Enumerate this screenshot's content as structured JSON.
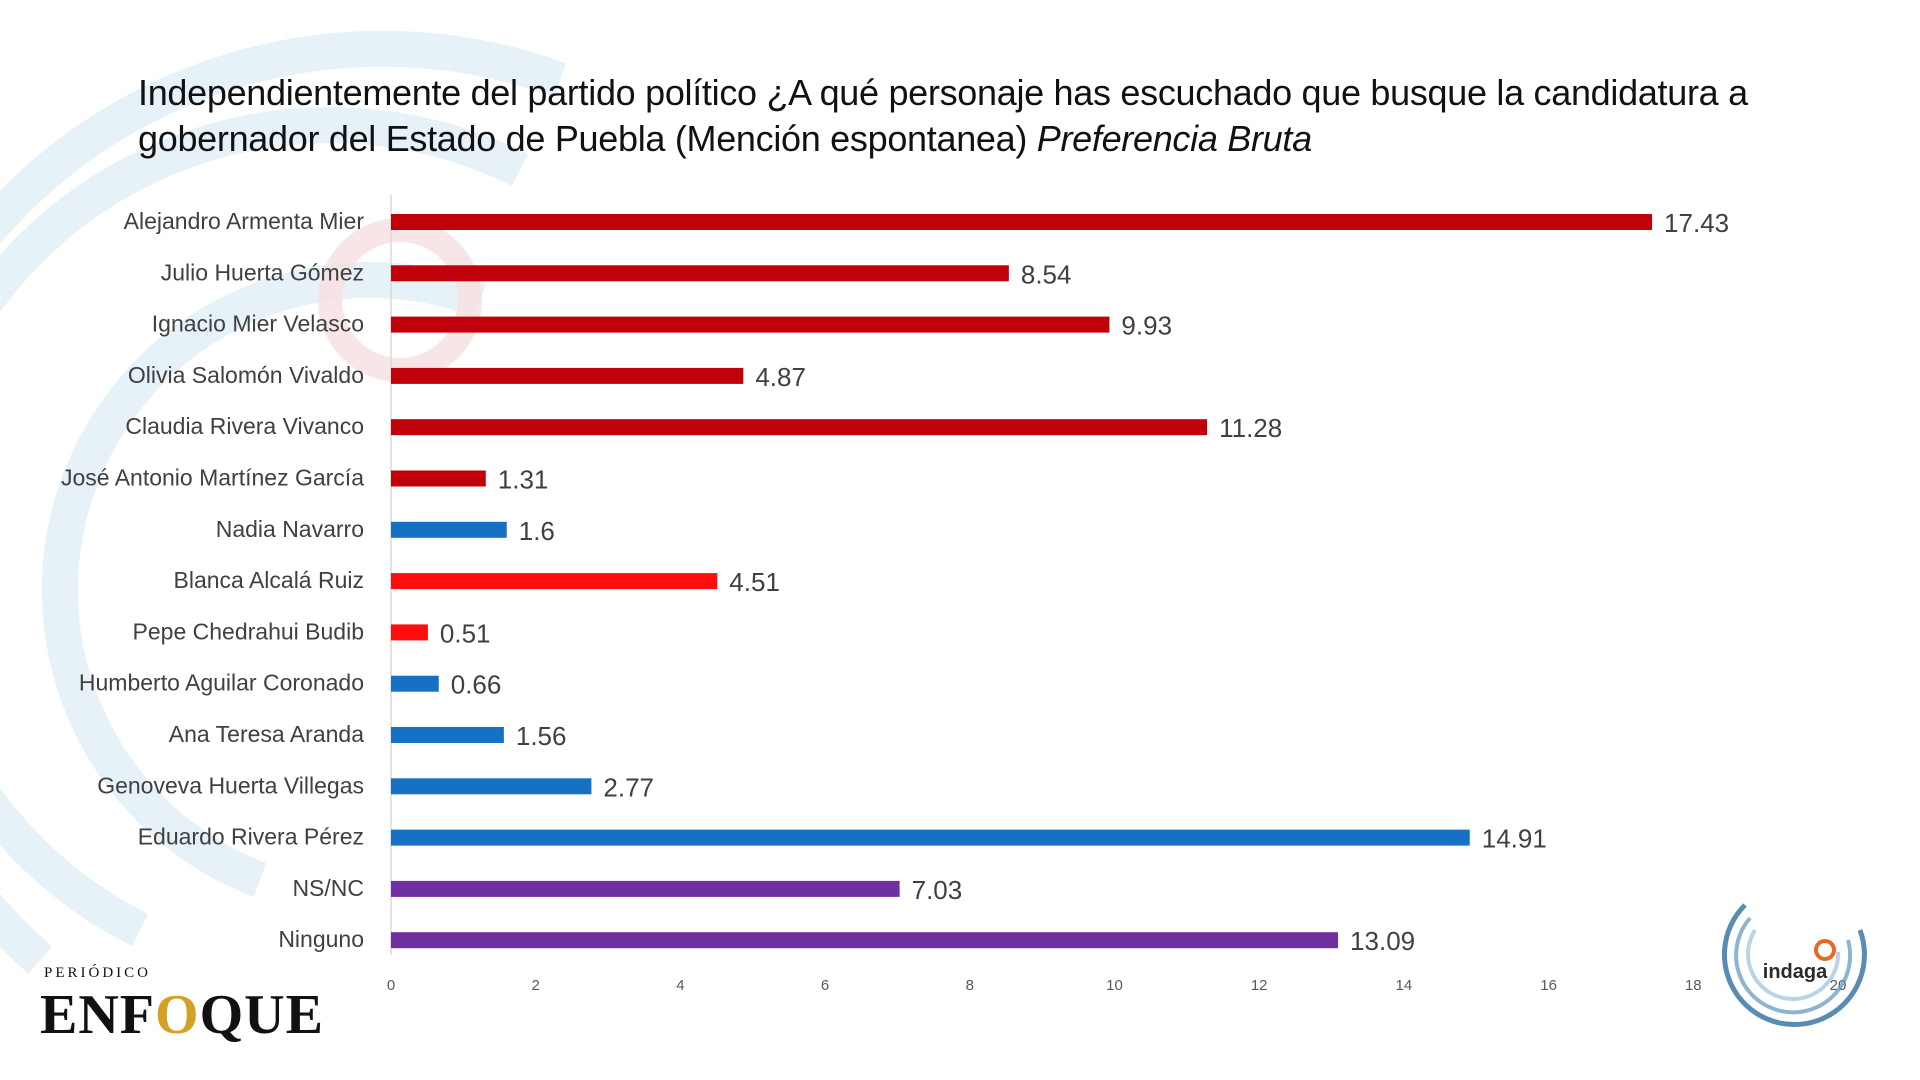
{
  "title": {
    "main": "Independientemente del partido político ¿A qué personaje has escuchado que busque la candidatura a gobernador del Estado de Puebla (Mención espontanea)",
    "emphasis": "Preferencia Bruta"
  },
  "colors": {
    "morena_red": "#c0000a",
    "red": "#ff0d0d",
    "blue": "#1671c4",
    "purple": "#7030a0",
    "brand_gold": "#d3a125",
    "indaga_blue": "#2f6f9e",
    "indaga_orange": "#e66a23"
  },
  "chart_data": {
    "type": "bar",
    "orientation": "horizontal",
    "title": "Independientemente del partido político ¿A qué personaje has escuchado que busque la candidatura a gobernador del Estado de Puebla (Mención espontanea) Preferencia Bruta",
    "xlabel": "",
    "ylabel": "",
    "xlim": [
      0,
      20
    ],
    "ticks": [
      "0",
      "2",
      "4",
      "6",
      "8",
      "10",
      "12",
      "14",
      "16",
      "18",
      "20"
    ],
    "grid": false,
    "categories": [
      "Alejandro Armenta Mier",
      "Julio Huerta Gómez",
      "Ignacio Mier Velasco",
      "Olivia Salomón Vivaldo",
      "Claudia Rivera Vivanco",
      "José Antonio Martínez García",
      "Nadia Navarro",
      "Blanca Alcalá Ruiz",
      "Pepe Chedrahui Budib",
      "Humberto Aguilar Coronado",
      "Ana Teresa Aranda",
      "Genoveva Huerta Villegas",
      "Eduardo Rivera Pérez",
      "NS/NC",
      "Ninguno"
    ],
    "values": [
      17.43,
      8.54,
      9.93,
      4.87,
      11.28,
      1.31,
      1.6,
      4.51,
      0.51,
      0.66,
      1.56,
      2.77,
      14.91,
      7.03,
      13.09
    ],
    "value_labels": [
      "17.43",
      "8.54",
      "9.93",
      "4.87",
      "11.28",
      "1.31",
      "1.6",
      "4.51",
      "0.51",
      "0.66",
      "1.56",
      "2.77",
      "14.91",
      "7.03",
      "13.09"
    ],
    "bar_colors": [
      "#c0000a",
      "#c0000a",
      "#c0000a",
      "#c0000a",
      "#c0000a",
      "#c0000a",
      "#1671c4",
      "#ff0d0d",
      "#ff0d0d",
      "#1671c4",
      "#1671c4",
      "#1671c4",
      "#1671c4",
      "#7030a0",
      "#7030a0"
    ]
  },
  "brand": {
    "enfoque_kicker": "PERIÓDICO",
    "enfoque_pre": "ENF",
    "enfoque_o": "O",
    "enfoque_post": "QUE",
    "indaga": "indaga"
  }
}
